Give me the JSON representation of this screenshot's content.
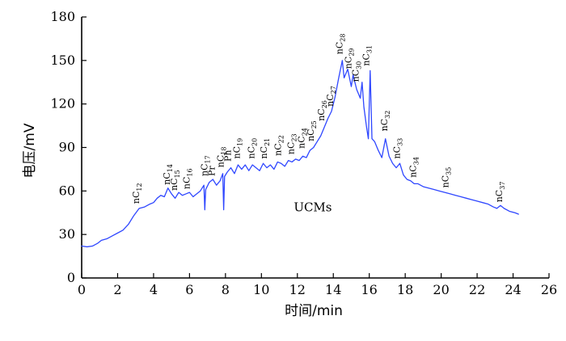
{
  "chart_data": {
    "type": "line",
    "xlabel": "时间/min",
    "ylabel": "电压/mV",
    "xlim": [
      0,
      26
    ],
    "ylim": [
      0,
      180
    ],
    "x_ticks": [
      0,
      2,
      4,
      6,
      8,
      10,
      12,
      14,
      16,
      18,
      20,
      22,
      24,
      26
    ],
    "y_ticks": [
      0,
      30,
      60,
      90,
      120,
      150,
      180
    ],
    "grid": false,
    "annotations": [
      "UCMs"
    ],
    "peak_labels": [
      {
        "prefix": "nC",
        "sub": "12",
        "x": 3.2,
        "y": 49
      },
      {
        "prefix": "nC",
        "sub": "14",
        "x": 4.9,
        "y": 62
      },
      {
        "prefix": "nC",
        "sub": "15",
        "x": 5.3,
        "y": 58
      },
      {
        "prefix": "nC",
        "sub": "16",
        "x": 6.0,
        "y": 59
      },
      {
        "prefix": "nC",
        "sub": "17",
        "x": 7.0,
        "y": 68
      },
      {
        "prefix": "Pr",
        "sub": "",
        "x": 7.4,
        "y": 68
      },
      {
        "prefix": "nC",
        "sub": "18",
        "x": 7.9,
        "y": 74
      },
      {
        "prefix": "Ph",
        "sub": "",
        "x": 8.3,
        "y": 78
      },
      {
        "prefix": "nC",
        "sub": "19",
        "x": 8.8,
        "y": 80
      },
      {
        "prefix": "nC",
        "sub": "20",
        "x": 9.6,
        "y": 80
      },
      {
        "prefix": "nC",
        "sub": "21",
        "x": 10.3,
        "y": 80
      },
      {
        "prefix": "nC",
        "sub": "22",
        "x": 11.1,
        "y": 82
      },
      {
        "prefix": "nC",
        "sub": "23",
        "x": 11.8,
        "y": 83
      },
      {
        "prefix": "nC",
        "sub": "24",
        "x": 12.4,
        "y": 87
      },
      {
        "prefix": "nC",
        "sub": "25",
        "x": 12.9,
        "y": 92
      },
      {
        "prefix": "nC",
        "sub": "26",
        "x": 13.5,
        "y": 106
      },
      {
        "prefix": "nC",
        "sub": "27",
        "x": 14.0,
        "y": 116
      },
      {
        "prefix": "nC",
        "sub": "28",
        "x": 14.5,
        "y": 152
      },
      {
        "prefix": "nC",
        "sub": "29",
        "x": 15.0,
        "y": 142
      },
      {
        "prefix": "nC",
        "sub": "30",
        "x": 15.4,
        "y": 133
      },
      {
        "prefix": "nC",
        "sub": "31",
        "x": 16.0,
        "y": 144
      },
      {
        "prefix": "nC",
        "sub": "32",
        "x": 17.0,
        "y": 99
      },
      {
        "prefix": "nC",
        "sub": "33",
        "x": 17.7,
        "y": 80
      },
      {
        "prefix": "nC",
        "sub": "34",
        "x": 18.6,
        "y": 67
      },
      {
        "prefix": "nC",
        "sub": "35",
        "x": 20.4,
        "y": 60
      },
      {
        "prefix": "nC",
        "sub": "37",
        "x": 23.4,
        "y": 50
      }
    ],
    "series": [
      {
        "points": [
          [
            0.0,
            22
          ],
          [
            0.3,
            21.5
          ],
          [
            0.6,
            22
          ],
          [
            0.9,
            24
          ],
          [
            1.1,
            26
          ],
          [
            1.4,
            27
          ],
          [
            1.7,
            29
          ],
          [
            2.0,
            31
          ],
          [
            2.3,
            33
          ],
          [
            2.6,
            37
          ],
          [
            2.9,
            43
          ],
          [
            3.2,
            48
          ],
          [
            3.5,
            49
          ],
          [
            3.8,
            51
          ],
          [
            4.0,
            52
          ],
          [
            4.2,
            55
          ],
          [
            4.4,
            57
          ],
          [
            4.6,
            56
          ],
          [
            4.8,
            62
          ],
          [
            5.0,
            58
          ],
          [
            5.2,
            55
          ],
          [
            5.4,
            59
          ],
          [
            5.6,
            57
          ],
          [
            5.8,
            58
          ],
          [
            6.0,
            59
          ],
          [
            6.2,
            56
          ],
          [
            6.4,
            58
          ],
          [
            6.6,
            60
          ],
          [
            6.8,
            64
          ],
          [
            6.85,
            47
          ],
          [
            6.9,
            61
          ],
          [
            7.1,
            66
          ],
          [
            7.3,
            68
          ],
          [
            7.5,
            64
          ],
          [
            7.7,
            67
          ],
          [
            7.85,
            72
          ],
          [
            7.9,
            47
          ],
          [
            7.95,
            70
          ],
          [
            8.1,
            73
          ],
          [
            8.3,
            76
          ],
          [
            8.5,
            72
          ],
          [
            8.7,
            78
          ],
          [
            8.9,
            75
          ],
          [
            9.1,
            78
          ],
          [
            9.3,
            74
          ],
          [
            9.5,
            78
          ],
          [
            9.7,
            76
          ],
          [
            9.9,
            74
          ],
          [
            10.1,
            79
          ],
          [
            10.3,
            76
          ],
          [
            10.5,
            78
          ],
          [
            10.7,
            75
          ],
          [
            10.9,
            80
          ],
          [
            11.1,
            79
          ],
          [
            11.3,
            77
          ],
          [
            11.5,
            81
          ],
          [
            11.7,
            80
          ],
          [
            11.9,
            82
          ],
          [
            12.1,
            81
          ],
          [
            12.3,
            84
          ],
          [
            12.5,
            83
          ],
          [
            12.7,
            88
          ],
          [
            12.9,
            90
          ],
          [
            13.1,
            94
          ],
          [
            13.3,
            98
          ],
          [
            13.5,
            104
          ],
          [
            13.7,
            110
          ],
          [
            13.9,
            115
          ],
          [
            14.1,
            125
          ],
          [
            14.3,
            138
          ],
          [
            14.5,
            150
          ],
          [
            14.6,
            138
          ],
          [
            14.8,
            144
          ],
          [
            15.0,
            132
          ],
          [
            15.1,
            140
          ],
          [
            15.3,
            130
          ],
          [
            15.5,
            124
          ],
          [
            15.6,
            135
          ],
          [
            15.7,
            118
          ],
          [
            15.85,
            104
          ],
          [
            15.95,
            96
          ],
          [
            16.05,
            143
          ],
          [
            16.15,
            96
          ],
          [
            16.3,
            94
          ],
          [
            16.5,
            88
          ],
          [
            16.7,
            83
          ],
          [
            16.9,
            96
          ],
          [
            17.1,
            84
          ],
          [
            17.3,
            79
          ],
          [
            17.5,
            76
          ],
          [
            17.7,
            79
          ],
          [
            17.9,
            71
          ],
          [
            18.1,
            68
          ],
          [
            18.3,
            67
          ],
          [
            18.5,
            65
          ],
          [
            18.7,
            65
          ],
          [
            19.0,
            63
          ],
          [
            19.3,
            62
          ],
          [
            19.6,
            61
          ],
          [
            19.9,
            60
          ],
          [
            20.2,
            59
          ],
          [
            20.5,
            58
          ],
          [
            20.8,
            57
          ],
          [
            21.1,
            56
          ],
          [
            21.4,
            55
          ],
          [
            21.7,
            54
          ],
          [
            22.0,
            53
          ],
          [
            22.3,
            52
          ],
          [
            22.6,
            51
          ],
          [
            22.9,
            49
          ],
          [
            23.1,
            48
          ],
          [
            23.3,
            50
          ],
          [
            23.5,
            48
          ],
          [
            23.8,
            46
          ],
          [
            24.1,
            45
          ],
          [
            24.3,
            44
          ]
        ]
      }
    ]
  }
}
